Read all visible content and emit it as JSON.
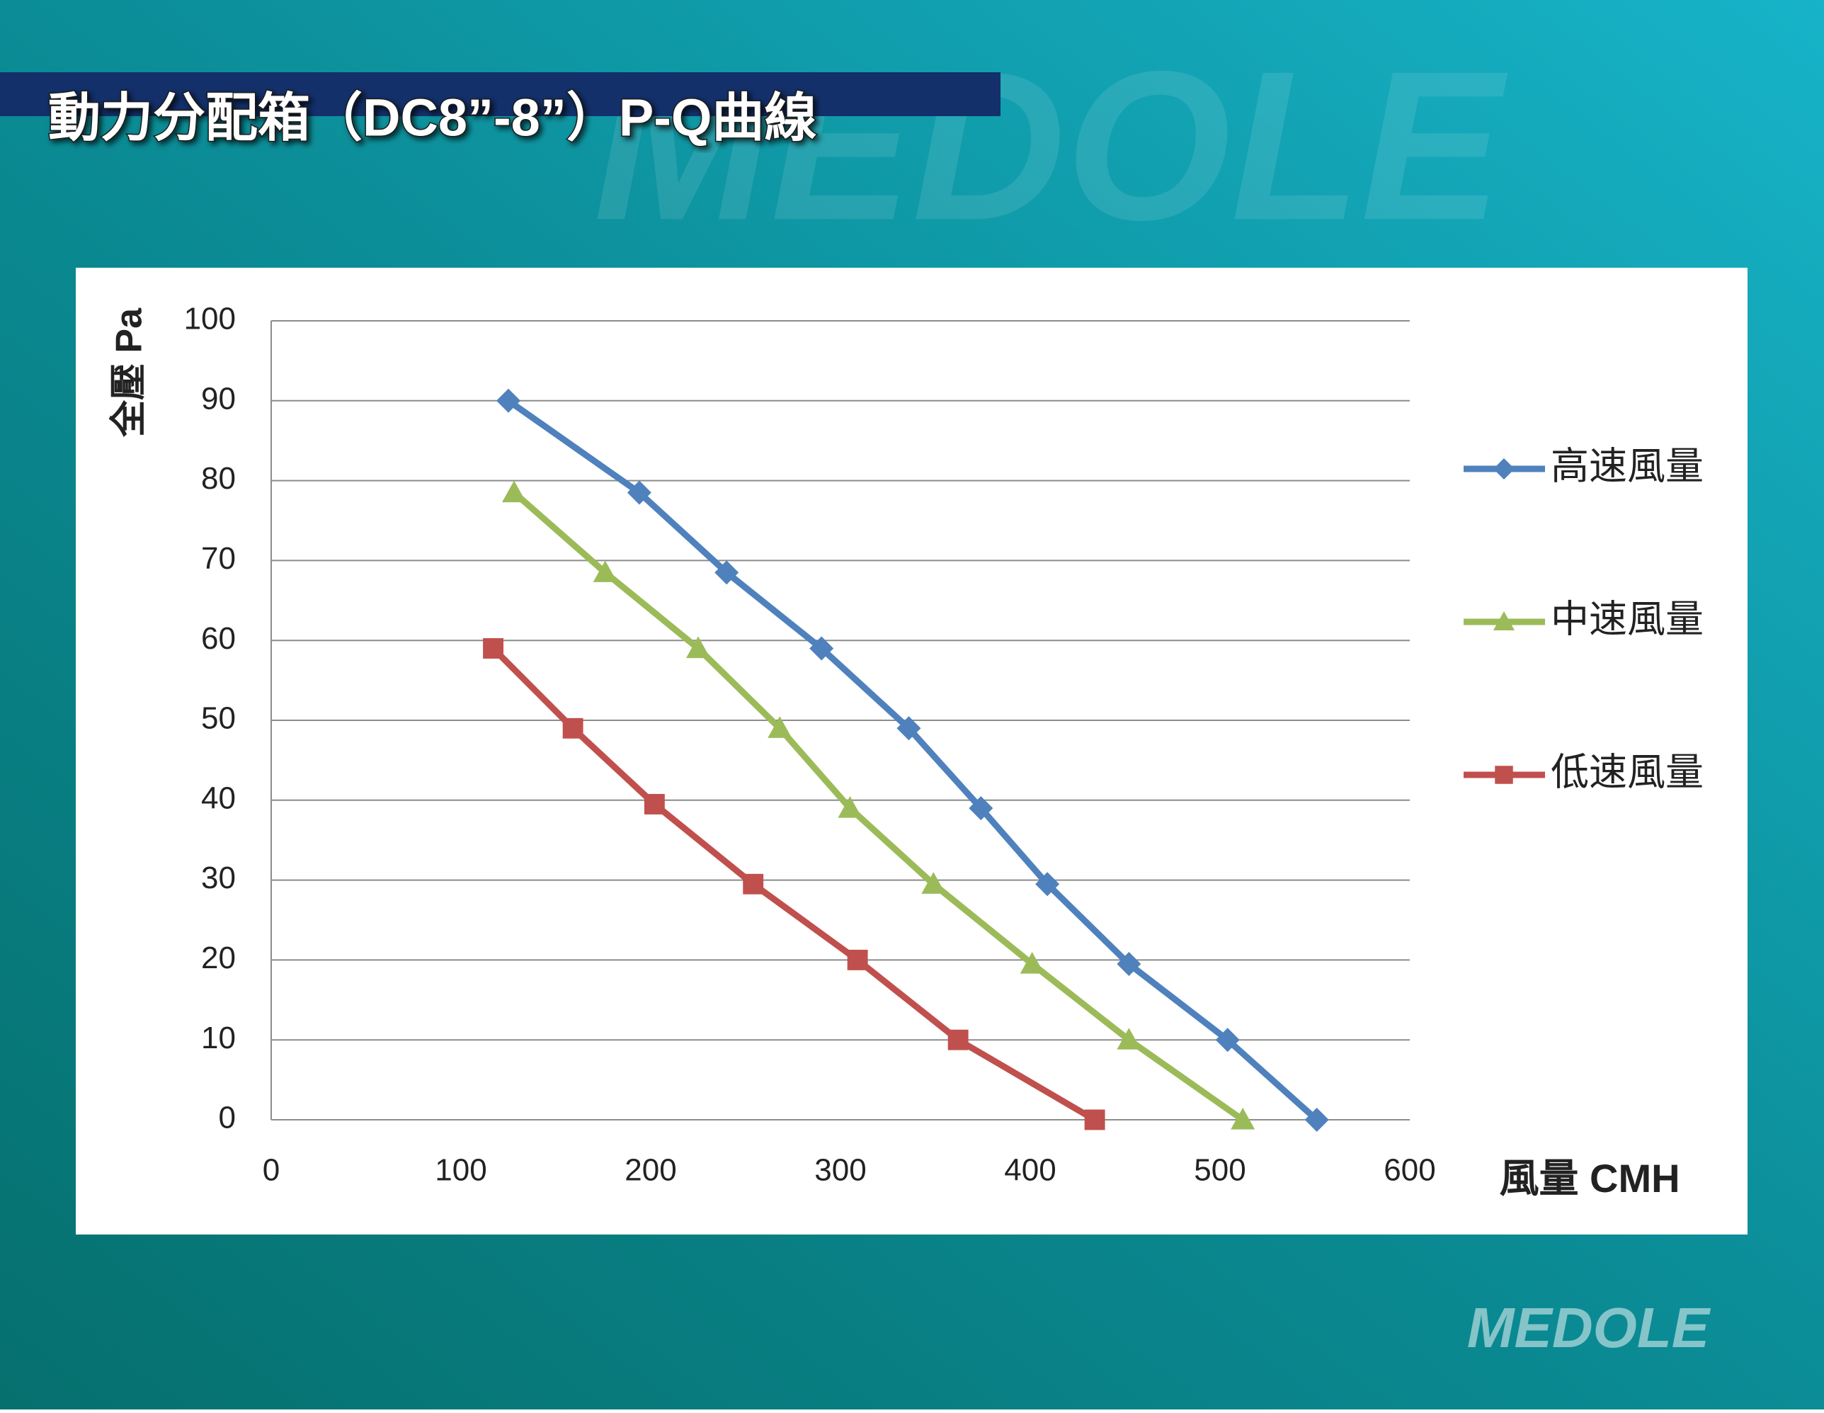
{
  "chart_data": {
    "type": "line",
    "title": "動力分配箱（DC8”-8”）P-Q曲線",
    "logo": "MEDOLE",
    "x_label": "風量 CMH",
    "y_label": "全壓 Pa",
    "xlim": [
      0,
      600
    ],
    "xticks": [
      0,
      100,
      200,
      300,
      400,
      500,
      600
    ],
    "ylim": [
      0,
      100
    ],
    "yticks": [
      0,
      10,
      20,
      30,
      40,
      50,
      60,
      70,
      80,
      90,
      100
    ],
    "grid": true,
    "legend": "right",
    "series": [
      {
        "name": "高速風量",
        "color": "#4f81bd",
        "marker": "diamond",
        "x": [
          125,
          194,
          240,
          290,
          336,
          374,
          409,
          452,
          504,
          551
        ],
        "values": [
          90,
          78.5,
          68.5,
          59,
          49,
          39,
          29.5,
          19.5,
          10,
          0
        ]
      },
      {
        "name": "中速風量",
        "color": "#9bbb59",
        "marker": "triangle",
        "x": [
          128,
          176,
          225,
          268,
          305,
          349,
          401,
          452,
          512
        ],
        "values": [
          78.5,
          68.5,
          59,
          49,
          39,
          29.5,
          19.5,
          10,
          0
        ]
      },
      {
        "name": "低速風量",
        "color": "#c0504d",
        "marker": "square",
        "x": [
          117,
          159,
          202,
          254,
          309,
          362,
          434
        ],
        "values": [
          59,
          49,
          39.5,
          29.5,
          20,
          10,
          0
        ]
      }
    ]
  }
}
